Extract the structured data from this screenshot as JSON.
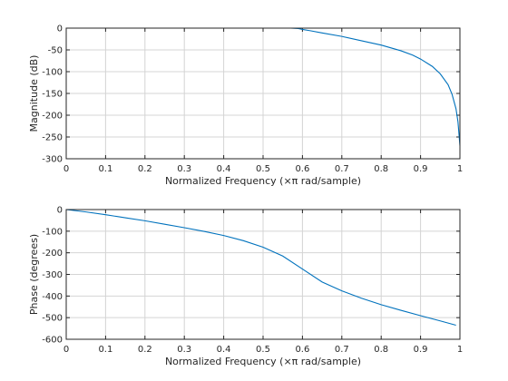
{
  "chart_data": [
    {
      "type": "line",
      "xlabel": "Normalized Frequency  (×π rad/sample)",
      "ylabel": "Magnitude (dB)",
      "xlim": [
        0,
        1
      ],
      "ylim": [
        -300,
        0
      ],
      "xticks": [
        "0",
        "0.1",
        "0.2",
        "0.3",
        "0.4",
        "0.5",
        "0.6",
        "0.7",
        "0.8",
        "0.9",
        "1"
      ],
      "yticks": [
        "0",
        "-50",
        "-100",
        "-150",
        "-200",
        "-250",
        "-300"
      ],
      "grid": true,
      "color": "#0072bd",
      "x": [
        0.0,
        0.1,
        0.2,
        0.3,
        0.4,
        0.5,
        0.57,
        0.59,
        0.6,
        0.62,
        0.65,
        0.7,
        0.75,
        0.8,
        0.85,
        0.88,
        0.9,
        0.93,
        0.95,
        0.97,
        0.98,
        0.99,
        0.995,
        1.0
      ],
      "y": [
        0,
        0,
        0,
        0,
        0,
        0,
        0,
        -1,
        -3,
        -6,
        -11,
        -19,
        -29,
        -39,
        -52,
        -62,
        -71,
        -88,
        -105,
        -130,
        -152,
        -185,
        -215,
        -270
      ]
    },
    {
      "type": "line",
      "xlabel": "Normalized Frequency  (×π rad/sample)",
      "ylabel": "Phase (degrees)",
      "xlim": [
        0,
        1
      ],
      "ylim": [
        -600,
        0
      ],
      "xticks": [
        "0",
        "0.1",
        "0.2",
        "0.3",
        "0.4",
        "0.5",
        "0.6",
        "0.7",
        "0.8",
        "0.9",
        "1"
      ],
      "yticks": [
        "0",
        "-100",
        "-200",
        "-300",
        "-400",
        "-500",
        "-600"
      ],
      "grid": true,
      "color": "#0072bd",
      "x": [
        0.0,
        0.05,
        0.1,
        0.15,
        0.2,
        0.25,
        0.3,
        0.35,
        0.4,
        0.45,
        0.5,
        0.55,
        0.6,
        0.65,
        0.7,
        0.75,
        0.8,
        0.85,
        0.9,
        0.95,
        0.99
      ],
      "y": [
        0,
        -11,
        -24,
        -38,
        -52,
        -68,
        -84,
        -101,
        -120,
        -144,
        -174,
        -215,
        -275,
        -335,
        -376,
        -410,
        -440,
        -466,
        -491,
        -515,
        -535
      ]
    }
  ]
}
